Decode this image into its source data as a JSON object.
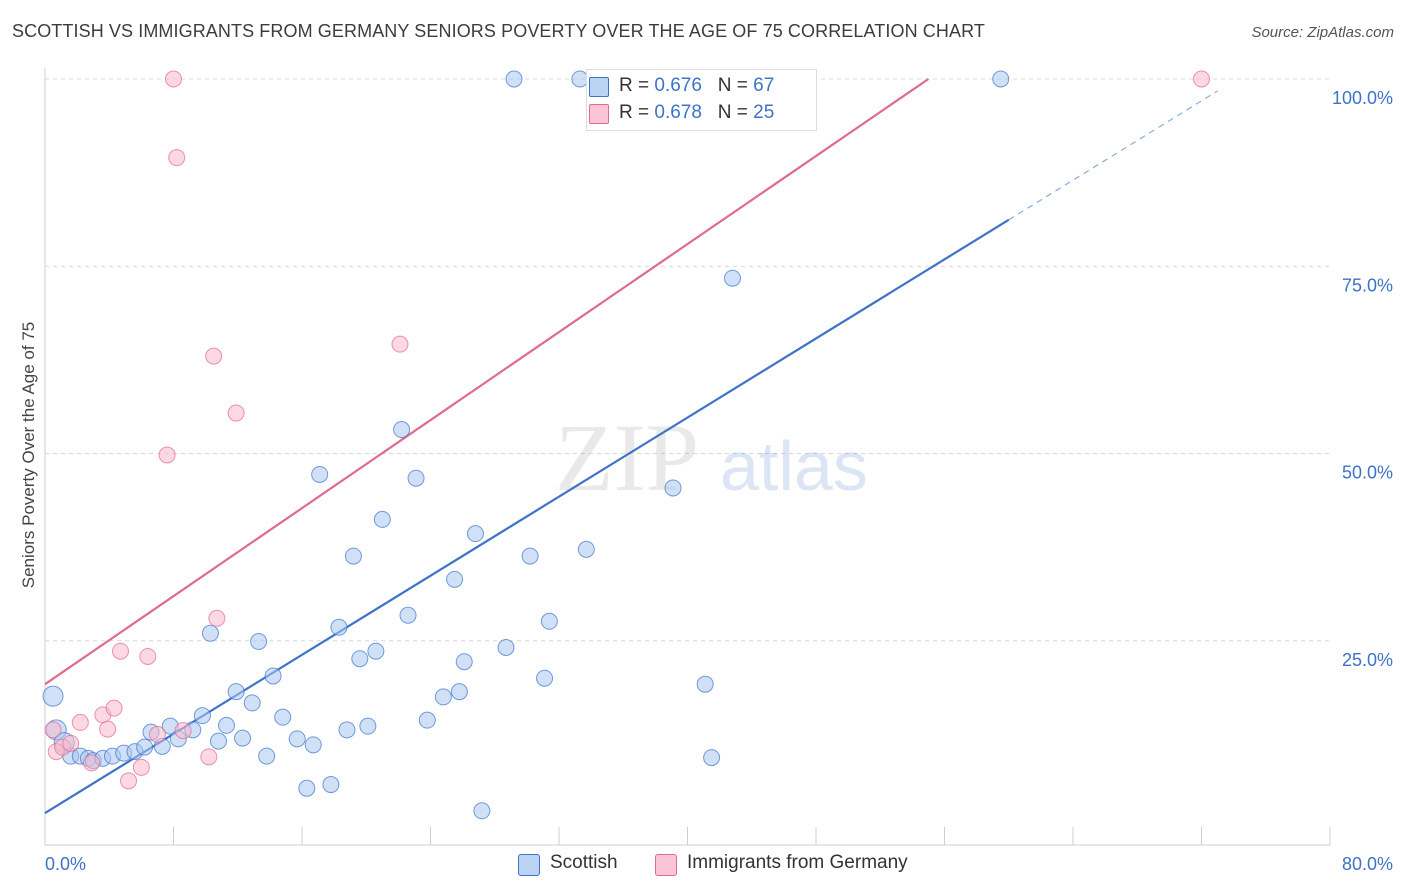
{
  "title": "SCOTTISH VS IMMIGRANTS FROM GERMANY SENIORS POVERTY OVER THE AGE OF 75 CORRELATION CHART",
  "source": "Source: ZipAtlas.com",
  "watermark": {
    "zip": "ZIP",
    "atlas": "atlas"
  },
  "legend_top": [
    {
      "r_label": "R =",
      "r_value": "0.676",
      "n_label": "N =",
      "n_value": "67"
    },
    {
      "r_label": "R =",
      "r_value": "0.678",
      "n_label": "N =",
      "n_value": "25"
    }
  ],
  "legend_bottom": [
    "Scottish",
    "Immigrants from Germany"
  ],
  "colors": {
    "blue": "#3d73c7",
    "blue_fill": "#a9c7f0",
    "pink": "#e06a92",
    "pink_fill": "#f7b8cc",
    "grid": "#d8d8d8"
  },
  "chart_data": {
    "type": "scatter",
    "ylabel": "Seniors Poverty Over the Age of 75",
    "xlabel": "",
    "x_tick_labels": [
      "0.0%",
      "80.0%"
    ],
    "y_tick_labels": [
      "100.0%",
      "75.0%",
      "50.0%",
      "25.0%"
    ],
    "y_ticks": [
      100,
      75,
      50,
      25
    ],
    "xlim": [
      0,
      80
    ],
    "ylim": [
      0,
      100
    ],
    "grid": true,
    "series": [
      {
        "name": "Scottish",
        "color": "#3d73c7",
        "fill": "#a9c7f0",
        "points": [
          [
            0.5,
            17.6
          ],
          [
            0.7,
            13.1
          ],
          [
            1.2,
            11.4
          ],
          [
            1.6,
            9.6
          ],
          [
            2.2,
            9.6
          ],
          [
            2.7,
            9.3
          ],
          [
            3.0,
            9.0
          ],
          [
            3.6,
            9.3
          ],
          [
            4.2,
            9.6
          ],
          [
            4.9,
            10.0
          ],
          [
            5.6,
            10.2
          ],
          [
            6.2,
            10.8
          ],
          [
            6.6,
            12.8
          ],
          [
            7.3,
            10.9
          ],
          [
            7.8,
            13.6
          ],
          [
            8.3,
            11.9
          ],
          [
            9.2,
            13.1
          ],
          [
            9.8,
            15.0
          ],
          [
            10.3,
            26.0
          ],
          [
            10.8,
            11.6
          ],
          [
            11.3,
            13.7
          ],
          [
            11.9,
            18.2
          ],
          [
            12.3,
            12.0
          ],
          [
            12.9,
            16.7
          ],
          [
            13.3,
            24.9
          ],
          [
            13.8,
            9.6
          ],
          [
            14.2,
            20.3
          ],
          [
            14.8,
            14.8
          ],
          [
            15.7,
            11.9
          ],
          [
            16.3,
            5.3
          ],
          [
            16.7,
            11.1
          ],
          [
            17.1,
            47.2
          ],
          [
            17.8,
            5.8
          ],
          [
            18.3,
            26.8
          ],
          [
            18.8,
            13.1
          ],
          [
            19.2,
            36.3
          ],
          [
            19.6,
            22.6
          ],
          [
            20.1,
            13.6
          ],
          [
            20.6,
            23.6
          ],
          [
            21.0,
            41.2
          ],
          [
            22.2,
            53.2
          ],
          [
            22.6,
            28.4
          ],
          [
            23.1,
            46.7
          ],
          [
            23.8,
            14.4
          ],
          [
            24.8,
            17.5
          ],
          [
            25.5,
            33.2
          ],
          [
            25.8,
            18.2
          ],
          [
            26.1,
            22.2
          ],
          [
            26.8,
            39.3
          ],
          [
            27.2,
            2.3
          ],
          [
            28.7,
            24.1
          ],
          [
            30.2,
            36.3
          ],
          [
            31.1,
            20.0
          ],
          [
            31.4,
            27.6
          ],
          [
            33.7,
            37.2
          ],
          [
            39.1,
            45.4
          ],
          [
            41.1,
            19.2
          ],
          [
            41.5,
            9.4
          ],
          [
            42.8,
            73.4
          ],
          [
            29.2,
            100.0
          ],
          [
            33.3,
            100.0
          ],
          [
            38.2,
            100.0
          ],
          [
            44.1,
            100.0
          ],
          [
            59.5,
            100.0
          ]
        ]
      },
      {
        "name": "Immigrants from Germany",
        "color": "#e06a92",
        "fill": "#f7b8cc",
        "points": [
          [
            0.5,
            13.1
          ],
          [
            0.7,
            10.2
          ],
          [
            1.1,
            10.8
          ],
          [
            1.6,
            11.3
          ],
          [
            2.2,
            14.1
          ],
          [
            2.9,
            8.7
          ],
          [
            3.6,
            15.1
          ],
          [
            3.9,
            13.2
          ],
          [
            4.3,
            16.0
          ],
          [
            4.7,
            23.6
          ],
          [
            5.2,
            6.3
          ],
          [
            6.0,
            8.1
          ],
          [
            6.4,
            22.9
          ],
          [
            7.0,
            12.5
          ],
          [
            7.6,
            49.8
          ],
          [
            8.0,
            100.0
          ],
          [
            8.2,
            89.5
          ],
          [
            8.6,
            13.0
          ],
          [
            10.2,
            9.5
          ],
          [
            10.5,
            63.0
          ],
          [
            10.7,
            28.0
          ],
          [
            11.9,
            55.4
          ],
          [
            22.1,
            64.6
          ],
          [
            72.0,
            100.0
          ]
        ]
      }
    ],
    "trend_lines": [
      {
        "series": "Scottish",
        "x": [
          0,
          60
        ],
        "y": [
          2.0,
          81.2
        ],
        "dashed_to": [
          73,
          98.4
        ]
      },
      {
        "series": "Immigrants from Germany",
        "x": [
          0,
          55
        ],
        "y": [
          19.2,
          100.0
        ]
      }
    ]
  }
}
